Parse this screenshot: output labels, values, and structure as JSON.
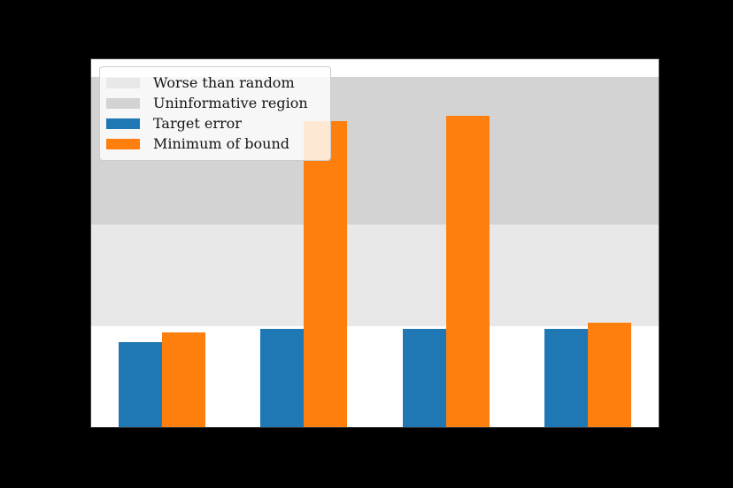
{
  "window": {
    "background": "#000000"
  },
  "chart_data": {
    "type": "bar",
    "title": "",
    "xlabel": "",
    "ylabel": "",
    "categories": [
      "",
      "",
      "",
      ""
    ],
    "ylim": [
      0,
      0.91
    ],
    "grid": false,
    "plot_background": "#ffffff",
    "regions": [
      {
        "name": "Worse than random",
        "color": "#e8e8e8",
        "from": 0.25,
        "to": 0.5
      },
      {
        "name": "Uninformative region",
        "color": "#d3d3d3",
        "from": 0.5,
        "to": 0.866
      }
    ],
    "series": [
      {
        "name": "Target error",
        "color": "#1f77b4",
        "values": [
          0.21,
          0.243,
          0.243,
          0.243
        ]
      },
      {
        "name": "Minimum of bound",
        "color": "#ff7f0e",
        "values": [
          0.234,
          0.757,
          0.77,
          0.258
        ]
      }
    ],
    "legend": {
      "position": "upper left",
      "entries": [
        "Worse than random",
        "Uninformative region",
        "Target error",
        "Minimum of bound"
      ]
    }
  }
}
